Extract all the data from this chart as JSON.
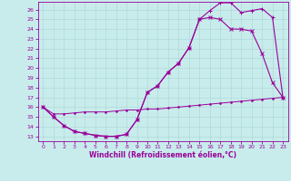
{
  "xlabel": "Windchill (Refroidissement éolien,°C)",
  "xlim": [
    -0.5,
    23.5
  ],
  "ylim": [
    12.5,
    26.8
  ],
  "xticks": [
    0,
    1,
    2,
    3,
    4,
    5,
    6,
    7,
    8,
    9,
    10,
    11,
    12,
    13,
    14,
    15,
    16,
    17,
    18,
    19,
    20,
    21,
    22,
    23
  ],
  "yticks": [
    13,
    14,
    15,
    16,
    17,
    18,
    19,
    20,
    21,
    22,
    23,
    24,
    25,
    26
  ],
  "bg_color": "#c8ecec",
  "line_color": "#990099",
  "grid_color": "#b0d8d8",
  "line1_x": [
    0,
    1,
    2,
    3,
    4,
    5,
    6,
    7,
    8,
    9,
    10,
    11,
    12,
    13,
    14,
    15,
    16,
    17,
    18,
    19,
    20,
    21,
    22,
    23
  ],
  "line1_y": [
    16.0,
    15.0,
    14.1,
    13.5,
    13.3,
    13.1,
    13.0,
    13.0,
    13.2,
    14.7,
    17.5,
    18.2,
    19.6,
    20.5,
    22.1,
    25.0,
    25.9,
    26.7,
    26.7,
    25.7,
    25.9,
    26.1,
    25.2,
    17.0
  ],
  "line2_x": [
    0,
    1,
    2,
    3,
    4,
    5,
    6,
    7,
    8,
    9,
    10,
    11,
    12,
    13,
    14,
    15,
    16,
    17,
    18,
    19,
    20,
    21,
    22,
    23
  ],
  "line2_y": [
    16.0,
    15.0,
    14.1,
    13.5,
    13.3,
    13.1,
    13.0,
    13.0,
    13.2,
    14.7,
    17.5,
    18.2,
    19.6,
    20.5,
    22.1,
    25.0,
    25.2,
    25.0,
    24.0,
    24.0,
    23.8,
    21.5,
    18.5,
    17.0
  ],
  "line3_x": [
    0,
    1,
    2,
    3,
    4,
    5,
    6,
    7,
    8,
    9,
    10,
    11,
    12,
    13,
    14,
    15,
    16,
    17,
    18,
    19,
    20,
    21,
    22,
    23
  ],
  "line3_y": [
    16.0,
    15.3,
    15.3,
    15.4,
    15.5,
    15.5,
    15.5,
    15.6,
    15.7,
    15.7,
    15.8,
    15.8,
    15.9,
    16.0,
    16.1,
    16.2,
    16.3,
    16.4,
    16.5,
    16.6,
    16.7,
    16.8,
    16.9,
    17.0
  ]
}
